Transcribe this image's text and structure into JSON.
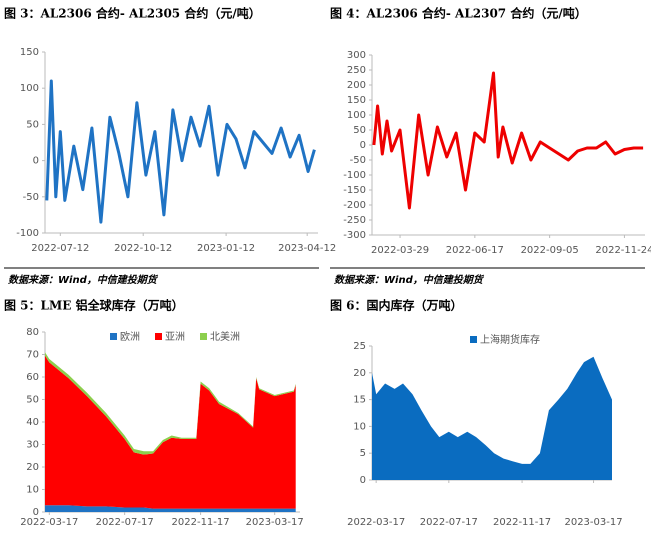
{
  "chart_data": [
    {
      "type": "line",
      "title": "图 3：AL2306 合约- AL2305 合约（元/吨）",
      "source": "数据来源：Wind，中信建投期货",
      "color": "#1f73c4",
      "x": [
        "2022-06-27",
        "2022-07-02",
        "2022-07-07",
        "2022-07-12",
        "2022-07-17",
        "2022-07-27",
        "2022-08-06",
        "2022-08-16",
        "2022-08-26",
        "2022-09-05",
        "2022-09-15",
        "2022-09-25",
        "2022-10-05",
        "2022-10-15",
        "2022-10-25",
        "2022-11-04",
        "2022-11-14",
        "2022-11-24",
        "2022-12-04",
        "2022-12-14",
        "2022-12-24",
        "2023-01-03",
        "2023-01-13",
        "2023-01-23",
        "2023-02-02",
        "2023-02-12",
        "2023-02-22",
        "2023-03-04",
        "2023-03-14",
        "2023-03-24",
        "2023-04-03",
        "2023-04-13",
        "2023-04-20"
      ],
      "values": [
        -55,
        110,
        -50,
        40,
        -55,
        20,
        -40,
        45,
        -85,
        60,
        10,
        -50,
        80,
        -20,
        40,
        -75,
        70,
        0,
        60,
        20,
        75,
        -20,
        50,
        30,
        -10,
        40,
        25,
        10,
        45,
        5,
        35,
        -15,
        15
      ],
      "xlim": [
        "2022-06-25",
        "2023-04-24"
      ],
      "xticks": [
        "2022-07-12",
        "2022-10-12",
        "2023-01-12",
        "2023-04-12"
      ],
      "ylim": [
        -100,
        150
      ],
      "yticks": [
        -100,
        -50,
        0,
        50,
        100,
        150
      ]
    },
    {
      "type": "line",
      "title": "图 4：AL2306 合约- AL2307 合约（元/吨）",
      "source": "数据来源：Wind，中信建投期货",
      "color": "#ee0000",
      "x": [
        "2022-03-01",
        "2022-03-05",
        "2022-03-10",
        "2022-03-15",
        "2022-03-20",
        "2022-03-29",
        "2022-04-08",
        "2022-04-18",
        "2022-04-28",
        "2022-05-08",
        "2022-05-18",
        "2022-05-28",
        "2022-06-07",
        "2022-06-17",
        "2022-06-27",
        "2022-07-07",
        "2022-07-12",
        "2022-07-17",
        "2022-07-27",
        "2022-08-06",
        "2022-08-16",
        "2022-08-26",
        "2022-09-05",
        "2022-09-15",
        "2022-09-25",
        "2022-10-05",
        "2022-10-15",
        "2022-10-25",
        "2022-11-04",
        "2022-11-14",
        "2022-11-24",
        "2022-12-04",
        "2022-12-14"
      ],
      "values": [
        0,
        130,
        -30,
        80,
        -20,
        50,
        -210,
        100,
        -100,
        60,
        -40,
        40,
        -150,
        40,
        10,
        240,
        -40,
        60,
        -60,
        40,
        -50,
        10,
        -10,
        -30,
        -50,
        -20,
        -10,
        -10,
        10,
        -30,
        -15,
        -10,
        -10
      ],
      "xlim": [
        "2022-02-27",
        "2022-12-16"
      ],
      "xticks": [
        "2022-03-29",
        "2022-06-17",
        "2022-09-05",
        "2022-11-24"
      ],
      "ylim": [
        -300,
        300
      ],
      "yticks": [
        -300,
        -250,
        -200,
        -150,
        -100,
        -50,
        0,
        50,
        100,
        150,
        200,
        250,
        300
      ]
    },
    {
      "type": "area",
      "title": "图 5：LME 铝全球库存（万吨）",
      "x": [
        "2022-03-10",
        "2022-03-17",
        "2022-04-17",
        "2022-05-17",
        "2022-06-17",
        "2022-07-17",
        "2022-08-01",
        "2022-08-17",
        "2022-09-01",
        "2022-09-17",
        "2022-10-01",
        "2022-10-17",
        "2022-11-10",
        "2022-11-17",
        "2022-12-01",
        "2022-12-17",
        "2023-01-17",
        "2023-02-10",
        "2023-02-15",
        "2023-02-20",
        "2023-03-17",
        "2023-04-17",
        "2023-04-20"
      ],
      "series": [
        {
          "name": "欧洲",
          "color": "#1f73c4",
          "values": [
            3,
            3,
            3,
            2.5,
            2.5,
            2,
            2,
            2,
            1.5,
            1.5,
            1.5,
            1.5,
            1.5,
            1.5,
            1.5,
            1.5,
            1.5,
            1.5,
            1.5,
            1.5,
            1.5,
            1.5,
            1.5
          ]
        },
        {
          "name": "亚洲",
          "color": "#ff0000",
          "values": [
            66.5,
            63.5,
            56.5,
            49,
            40,
            30.5,
            24.5,
            23.5,
            24.5,
            29.5,
            31.5,
            31,
            31,
            55.5,
            52.5,
            46.5,
            42,
            36,
            58,
            53,
            50,
            52,
            55
          ]
        },
        {
          "name": "北美洲",
          "color": "#8ccf4d",
          "values": [
            1.5,
            1.5,
            1.5,
            1.5,
            1.5,
            1.5,
            1.5,
            1.5,
            1,
            1,
            1,
            0.5,
            0.5,
            1,
            1,
            1,
            0.5,
            0.5,
            0.5,
            0.5,
            0.5,
            0.5,
            0.5
          ]
        }
      ],
      "xlim": [
        "2022-03-10",
        "2023-04-27"
      ],
      "xticks": [
        "2022-03-17",
        "2022-07-17",
        "2022-11-17",
        "2023-03-17"
      ],
      "ylim": [
        0,
        80
      ],
      "yticks": [
        0,
        10,
        20,
        30,
        40,
        50,
        60,
        70,
        80
      ]
    },
    {
      "type": "area",
      "title": "图 6：国内库存（万吨）",
      "x": [
        "2022-03-10",
        "2022-03-17",
        "2022-04-01",
        "2022-04-17",
        "2022-05-01",
        "2022-05-17",
        "2022-06-01",
        "2022-06-17",
        "2022-07-01",
        "2022-07-17",
        "2022-08-01",
        "2022-08-17",
        "2022-09-01",
        "2022-09-17",
        "2022-10-01",
        "2022-10-17",
        "2022-11-01",
        "2022-11-17",
        "2022-12-01",
        "2022-12-17",
        "2023-01-01",
        "2023-01-17",
        "2023-02-01",
        "2023-02-17",
        "2023-03-01",
        "2023-03-17",
        "2023-04-01",
        "2023-04-17"
      ],
      "series": [
        {
          "name": "上海期货库存",
          "color": "#0a6cc0",
          "values": [
            20,
            16,
            18,
            17,
            18,
            16,
            13,
            10,
            8,
            9,
            8,
            9,
            8,
            6.5,
            5,
            4,
            3.5,
            3,
            3,
            5,
            13,
            15,
            17,
            20,
            22,
            23,
            19,
            15
          ]
        }
      ],
      "xlim": [
        "2022-03-10",
        "2023-04-17"
      ],
      "xticks": [
        "2022-03-17",
        "2022-07-17",
        "2022-11-17",
        "2023-03-17"
      ],
      "ylim": [
        0,
        25
      ],
      "yticks": [
        0,
        5,
        10,
        15,
        20,
        25
      ]
    }
  ]
}
